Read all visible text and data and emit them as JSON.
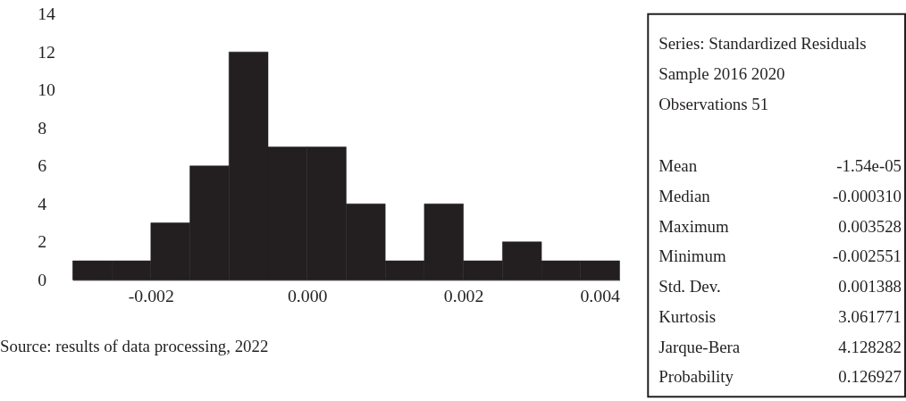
{
  "chart_data": [
    {
      "type": "histogram",
      "bins": [
        -0.003,
        -0.0025,
        -0.002,
        -0.0015,
        -0.001,
        -0.0005,
        0.0,
        0.0005,
        0.001,
        0.0015,
        0.002,
        0.0025,
        0.003,
        0.0035,
        0.004
      ],
      "values": [
        1,
        1,
        3,
        6,
        12,
        7,
        7,
        4,
        1,
        4,
        1,
        2,
        1,
        1
      ],
      "color": "#231f20",
      "xlim": [
        -0.003,
        0.004
      ],
      "xticks": [
        {
          "value": -0.002,
          "label": "-0.002"
        },
        {
          "value": 0.0,
          "label": "0.000"
        },
        {
          "value": 0.002,
          "label": "0.002"
        },
        {
          "value": 0.004,
          "label": "0.004"
        }
      ],
      "ylim": [
        0,
        14
      ],
      "yticks": [
        0,
        2,
        4,
        6,
        8,
        10,
        12,
        14
      ],
      "grid": false,
      "annotations": [
        "Source: results of data processing, 2022"
      ]
    },
    {
      "type": "other",
      "annotations": [
        "Series: Standardized Residuals",
        "Sample 2016 2020",
        "Observations 51",
        "Mean",
        "-1.54e-05",
        "Median",
        "-0.000310",
        "Maximum",
        "0.003528",
        "Minimum",
        "-0.002551",
        "Std. Dev.",
        "0.001388",
        "Kurtosis",
        "3.061771",
        "Jarque-Bera",
        "4.128282",
        "Probability",
        "0.126927"
      ]
    }
  ]
}
